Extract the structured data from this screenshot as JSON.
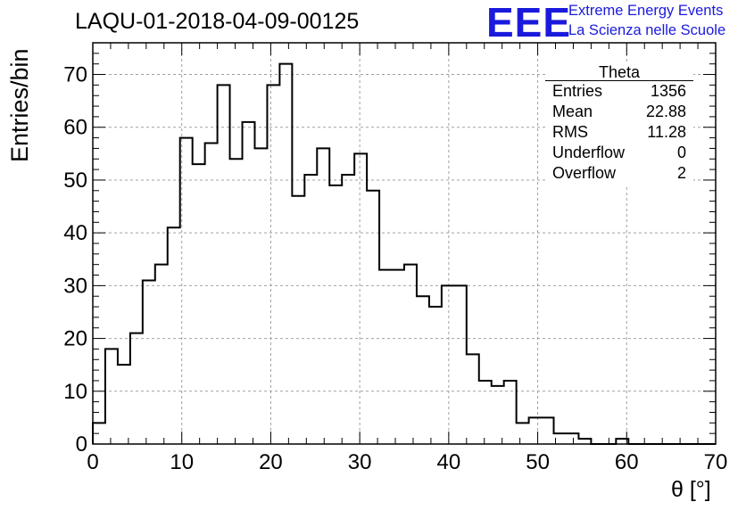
{
  "page": {
    "title": "LAQU-01-2018-04-09-00125"
  },
  "logo": {
    "text": "EEE",
    "line1": "Extreme Energy Events",
    "line2": "La Scienza nelle Scuole",
    "color": "#1a1adc"
  },
  "stats": {
    "title": "Theta",
    "rows": [
      {
        "label": "Entries",
        "value": "1356"
      },
      {
        "label": "Mean",
        "value": "22.88"
      },
      {
        "label": "RMS",
        "value": "11.28"
      },
      {
        "label": "Underflow",
        "value": "0"
      },
      {
        "label": "Overflow",
        "value": "2"
      }
    ]
  },
  "chart_data": {
    "type": "histogram",
    "title": "LAQU-01-2018-04-09-00125",
    "xlabel": "θ [°]",
    "ylabel": "Entries/bin",
    "xlim": [
      0,
      70
    ],
    "ylim": [
      0,
      76
    ],
    "grid": true,
    "bin_width": 1.4,
    "x_ticks": [
      "0",
      "10",
      "20",
      "30",
      "40",
      "50",
      "60",
      "70"
    ],
    "y_ticks": [
      "0",
      "10",
      "20",
      "30",
      "40",
      "50",
      "60",
      "70"
    ],
    "values": [
      4,
      18,
      15,
      21,
      31,
      34,
      41,
      58,
      53,
      57,
      68,
      54,
      61,
      56,
      68,
      72,
      47,
      51,
      56,
      49,
      51,
      55,
      48,
      33,
      33,
      34,
      28,
      26,
      30,
      30,
      17,
      12,
      11,
      12,
      4,
      5,
      5,
      2,
      2,
      1,
      0,
      0,
      1,
      0,
      0,
      0,
      0,
      0,
      0,
      0
    ],
    "line_color": "#000000"
  }
}
